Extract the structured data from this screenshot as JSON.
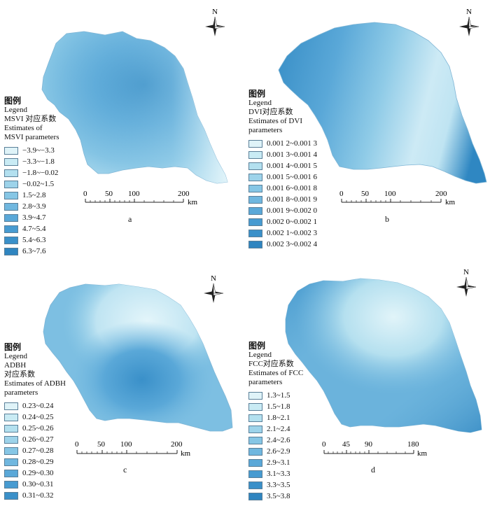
{
  "panels": [
    {
      "letter": "a",
      "legend_title": "图例",
      "legend_lines": [
        "Legend",
        "MSVI 对应系数",
        "Estimates of",
        "MSVI parameters"
      ],
      "north": "N",
      "scale": {
        "ticks": [
          "0",
          "50",
          "100",
          "200"
        ],
        "unit": "km"
      },
      "classes": [
        "−3.9~−3.3",
        "−3.3~−1.8",
        "−1.8~−0.02",
        "−0.02~1.5",
        "1.5~2.8",
        "2.8~3.9",
        "3.9~4.7",
        "4.7~5.4",
        "5.4~6.3",
        "6.3~7.6"
      ],
      "colors": [
        "#dff3f8",
        "#c9ebf4",
        "#b3e0ef",
        "#9dd3ea",
        "#86c6e5",
        "#70b7df",
        "#5aa8d8",
        "#479bd1",
        "#3a90c9",
        "#2f85c0"
      ]
    },
    {
      "letter": "b",
      "legend_title": "图例",
      "legend_lines": [
        "Legend",
        "DVI对应系数",
        "Estimates of DVI",
        "parameters"
      ],
      "north": "N",
      "scale": {
        "ticks": [
          "0",
          "50",
          "100",
          "200"
        ],
        "unit": "km"
      },
      "classes": [
        "0.001 2~0.001 3",
        "0.001 3~0.001 4",
        "0.001 4~0.001 5",
        "0.001 5~0.001 6",
        "0.001 6~0.001 8",
        "0.001 8~0.001 9",
        "0.001 9~0.002 0",
        "0.002 0~0.002 1",
        "0.002 1~0.002 3",
        "0.002 3~0.002 4"
      ],
      "colors": [
        "#dff3f8",
        "#c9ebf4",
        "#b3e0ef",
        "#9dd3ea",
        "#86c6e5",
        "#70b7df",
        "#5aa8d8",
        "#479bd1",
        "#3a90c9",
        "#2f85c0"
      ]
    },
    {
      "letter": "c",
      "legend_title": "图例",
      "legend_lines": [
        "Legend",
        "ADBH",
        "对应系数",
        "Estimates of ADBH",
        "parameters"
      ],
      "north": "N",
      "scale": {
        "ticks": [
          "0",
          "50",
          "100",
          "200"
        ],
        "unit": "km"
      },
      "classes": [
        "0.23~0.24",
        "0.24~0.25",
        "0.25~0.26",
        "0.26~0.27",
        "0.27~0.28",
        "0.28~0.29",
        "0.29~0.30",
        "0.30~0.31",
        "0.31~0.32"
      ],
      "colors": [
        "#dff3f8",
        "#c9ebf4",
        "#b3e0ef",
        "#9dd3ea",
        "#86c6e5",
        "#70b7df",
        "#5aa8d8",
        "#479bd1",
        "#3a90c9"
      ]
    },
    {
      "letter": "d",
      "legend_title": "图例",
      "legend_lines": [
        "Legend",
        "FCC对应系数",
        "Estimates of FCC",
        "parameters"
      ],
      "north": "N",
      "scale": {
        "ticks": [
          "0",
          "45",
          "90",
          "180"
        ],
        "unit": "km"
      },
      "classes": [
        "1.3~1.5",
        "1.5~1.8",
        "1.8~2.1",
        "2.1~2.4",
        "2.4~2.6",
        "2.6~2.9",
        "2.9~3.1",
        "3.1~3.3",
        "3.3~3.5",
        "3.5~3.8"
      ],
      "colors": [
        "#dff3f8",
        "#c9ebf4",
        "#b3e0ef",
        "#9dd3ea",
        "#86c6e5",
        "#70b7df",
        "#5aa8d8",
        "#479bd1",
        "#3a90c9",
        "#2f85c0"
      ]
    }
  ]
}
